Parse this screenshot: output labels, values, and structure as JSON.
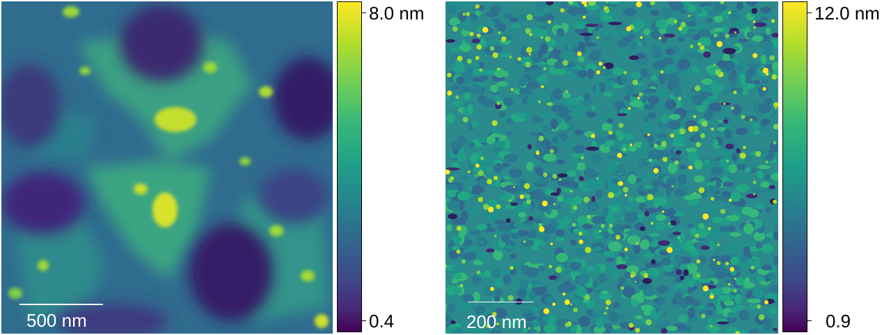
{
  "panels": [
    {
      "scalebar": "500 nm",
      "colorbar": {
        "max_label": "8.0 nm",
        "min_label": "0.4",
        "colormap": "viridis"
      }
    },
    {
      "scalebar": "200 nm",
      "colorbar": {
        "max_label": "12.0 nm",
        "min_label": "0.9",
        "colormap": "viridis"
      }
    }
  ]
}
